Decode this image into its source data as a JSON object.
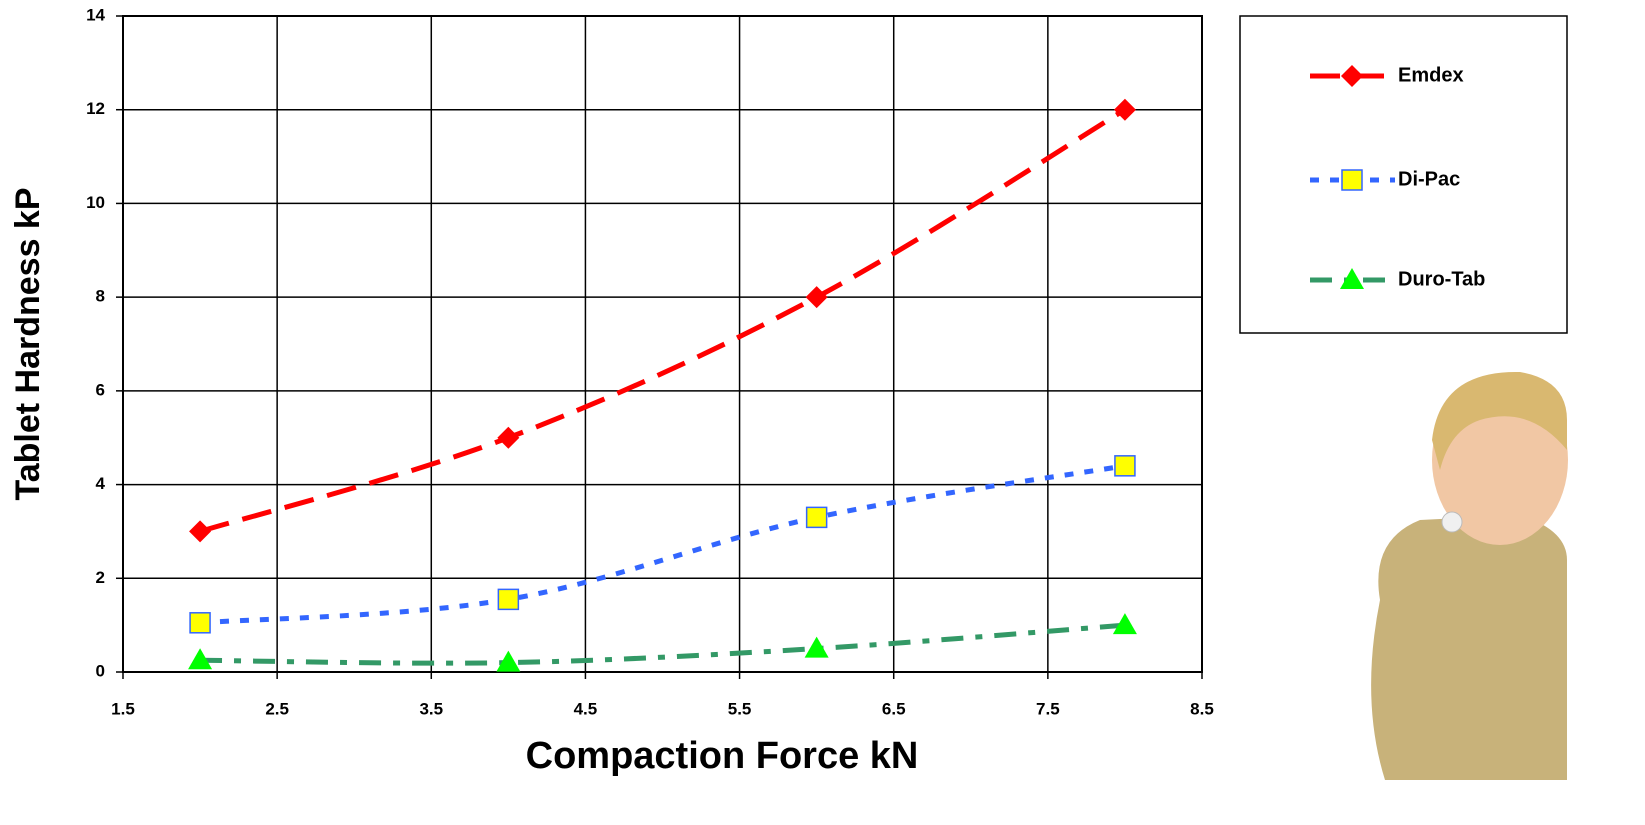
{
  "chart_data": {
    "type": "line",
    "x_label": "Compaction Force kN",
    "y_label": "Tablet Hardness kP",
    "x": [
      2,
      4,
      6,
      8
    ],
    "series": [
      {
        "name": "Emdex",
        "color": "#ff0000",
        "marker": "diamond",
        "values": [
          3,
          5,
          8,
          12
        ]
      },
      {
        "name": "Di-Pac",
        "color": "#3366ff",
        "marker": "square",
        "values": [
          1.05,
          1.55,
          3.3,
          4.4
        ]
      },
      {
        "name": "Duro-Tab",
        "color": "#339966",
        "marker": "triangle",
        "values": [
          0.25,
          0.2,
          0.5,
          1.0
        ]
      }
    ],
    "xlim": [
      1.5,
      8.5
    ],
    "xticks": [
      1.5,
      2.5,
      3.5,
      4.5,
      5.5,
      6.5,
      7.5,
      8.5
    ],
    "ylim": [
      0,
      14
    ],
    "yticks": [
      0,
      2,
      4,
      6,
      8,
      10,
      12,
      14
    ],
    "grid": true,
    "legend": "right"
  }
}
